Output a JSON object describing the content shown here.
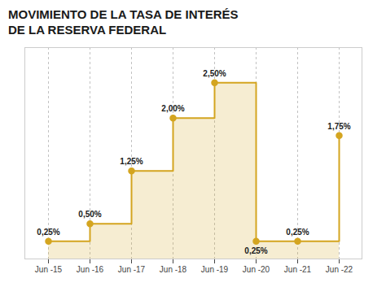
{
  "chart_data": {
    "type": "step",
    "title": "MOVIMIENTO DE LA TASA DE INTERÉS",
    "subtitle": "DE LA RESERVA FEDERAL",
    "categories": [
      "Jun -15",
      "Jun -16",
      "Jun -17",
      "Jun -18",
      "Jun -19",
      "Jun -20",
      "Jun -21",
      "Jun -22"
    ],
    "values": [
      0.25,
      0.5,
      1.25,
      2.0,
      2.5,
      0.25,
      0.25,
      1.75
    ],
    "value_labels": [
      "0,25%",
      "0,50%",
      "1,25%",
      "2,00%",
      "2,50%",
      "0,25%",
      "0,25%",
      "1,75%"
    ],
    "color": "#D4A520",
    "ylim": [
      0,
      3
    ],
    "grid": true,
    "data_labels": true,
    "tick_labels": "x",
    "marker": "circle"
  }
}
